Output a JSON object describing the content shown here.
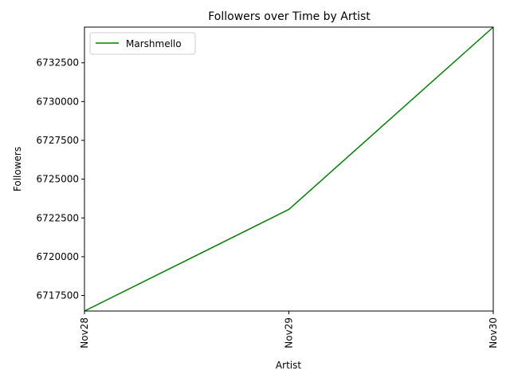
{
  "chart_data": {
    "type": "line",
    "title": "Followers over Time by Artist",
    "xlabel": "Artist",
    "ylabel": "Followers",
    "categories": [
      "Nov28",
      "Nov29",
      "Nov30"
    ],
    "series": [
      {
        "name": "Marshmello",
        "color": "#008000",
        "values": [
          6716500,
          6723050,
          6734800
        ]
      }
    ],
    "ylim": [
      6716500,
      6734800
    ],
    "yticks": [
      6717500,
      6720000,
      6722500,
      6725000,
      6727500,
      6730000,
      6732500
    ],
    "ytick_labels": [
      "6717500",
      "6720000",
      "6722500",
      "6725000",
      "6727500",
      "6730000",
      "6732500"
    ],
    "grid": false,
    "legend_position": "top-left"
  }
}
